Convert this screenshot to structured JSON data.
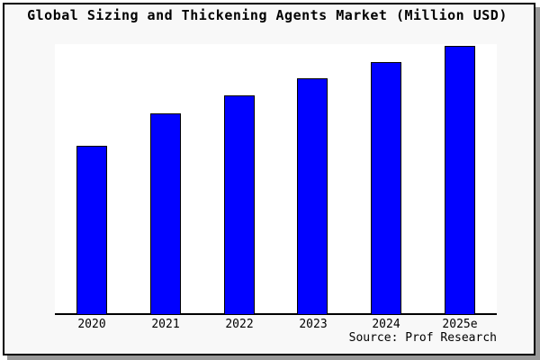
{
  "title": "Global Sizing and Thickening Agents Market (Million USD)",
  "source": "Source: Prof Research",
  "colors": {
    "bar_fill": "#0000FF",
    "bar_border": "#000000",
    "canvas_bg": "#F8F8F8",
    "plot_bg": "#FFFFFF",
    "axis": "#000000",
    "frame_border": "#000000",
    "frame_shadow": "#999999",
    "text": "#000000"
  },
  "chart_data": {
    "type": "bar",
    "title": "Global Sizing and Thickening Agents Market (Million USD)",
    "categories": [
      "2020",
      "2021",
      "2022",
      "2023",
      "2024",
      "2025e"
    ],
    "values": [
      63,
      75,
      81.5,
      88,
      94,
      100
    ],
    "value_scale": "percent of tallest bar; source chart shows no y-axis ticks, gridlines or data labels",
    "xlabel": "",
    "ylabel": "",
    "legend": "none",
    "grid": false,
    "bar_color": "#0000FF",
    "annotations": [
      "Source: Prof Research"
    ]
  }
}
